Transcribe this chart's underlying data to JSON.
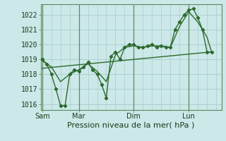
{
  "xlabel": "Pression niveau de la mer( hPa )",
  "bg_color": "#cce8e8",
  "grid_color": "#aacccc",
  "line_color": "#2d6a2d",
  "dark_line_color": "#1a4a1a",
  "yticks": [
    1016,
    1017,
    1018,
    1019,
    1020,
    1021,
    1022
  ],
  "ylim": [
    1015.6,
    1022.7
  ],
  "xtick_labels": [
    "Sam",
    "Mar",
    "Dim",
    "Lun"
  ],
  "xtick_positions": [
    0,
    48,
    120,
    192
  ],
  "xlim": [
    -2,
    235
  ],
  "main_data": [
    [
      0,
      1019.0
    ],
    [
      6,
      1018.7
    ],
    [
      12,
      1018.0
    ],
    [
      18,
      1017.0
    ],
    [
      24,
      1015.9
    ],
    [
      30,
      1015.9
    ],
    [
      36,
      1018.0
    ],
    [
      42,
      1018.3
    ],
    [
      48,
      1018.2
    ],
    [
      54,
      1018.5
    ],
    [
      60,
      1018.8
    ],
    [
      66,
      1018.3
    ],
    [
      72,
      1018.0
    ],
    [
      78,
      1017.3
    ],
    [
      84,
      1016.4
    ],
    [
      90,
      1019.2
    ],
    [
      96,
      1019.5
    ],
    [
      102,
      1019.0
    ],
    [
      108,
      1019.8
    ],
    [
      114,
      1020.0
    ],
    [
      120,
      1020.0
    ],
    [
      126,
      1019.8
    ],
    [
      132,
      1019.8
    ],
    [
      138,
      1019.9
    ],
    [
      144,
      1020.0
    ],
    [
      150,
      1019.8
    ],
    [
      156,
      1019.9
    ],
    [
      162,
      1019.8
    ],
    [
      168,
      1019.8
    ],
    [
      174,
      1021.0
    ],
    [
      180,
      1021.5
    ],
    [
      186,
      1022.0
    ],
    [
      192,
      1022.3
    ],
    [
      198,
      1022.4
    ],
    [
      204,
      1021.8
    ],
    [
      210,
      1021.0
    ],
    [
      216,
      1019.5
    ],
    [
      222,
      1019.5
    ]
  ],
  "trend_line": [
    [
      0,
      1018.4
    ],
    [
      222,
      1019.5
    ]
  ],
  "smooth_line": [
    [
      0,
      1018.9
    ],
    [
      12,
      1018.5
    ],
    [
      24,
      1017.5
    ],
    [
      36,
      1018.0
    ],
    [
      48,
      1018.3
    ],
    [
      60,
      1018.7
    ],
    [
      72,
      1018.2
    ],
    [
      84,
      1017.5
    ],
    [
      96,
      1019.3
    ],
    [
      108,
      1019.8
    ],
    [
      120,
      1019.9
    ],
    [
      132,
      1019.8
    ],
    [
      144,
      1019.9
    ],
    [
      156,
      1019.9
    ],
    [
      168,
      1019.8
    ],
    [
      180,
      1021.2
    ],
    [
      192,
      1022.2
    ],
    [
      204,
      1021.5
    ],
    [
      216,
      1020.5
    ],
    [
      222,
      1019.5
    ]
  ],
  "vlines": [
    0,
    48,
    120,
    192
  ],
  "marker_size": 2.2,
  "line_width": 1.0,
  "font_size": 7
}
